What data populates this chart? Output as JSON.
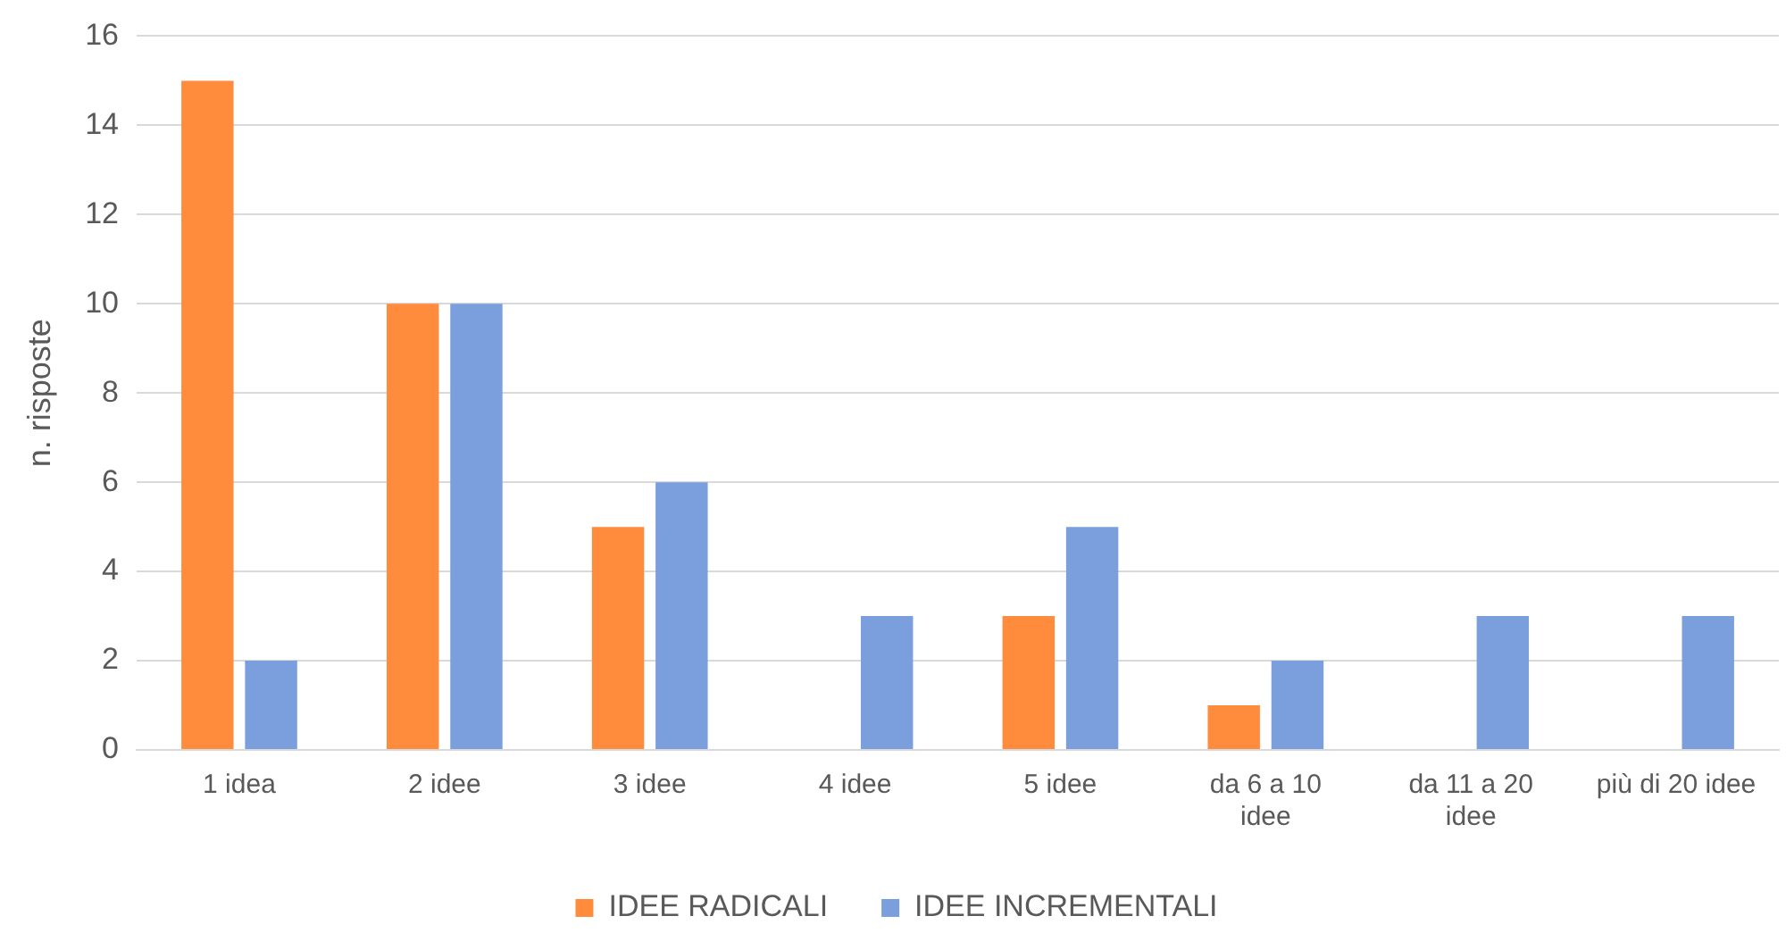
{
  "chart_data": {
    "type": "bar",
    "ylabel": "n. risposte",
    "categories": [
      "1 idea",
      "2 idee",
      "3 idee",
      "4 idee",
      "5 idee",
      "da 6 a 10\nidee",
      "da 11 a 20\nidee",
      "più di 20 idee"
    ],
    "series": [
      {
        "name": "IDEE RADICALI",
        "color": "#ff8b3d",
        "values": [
          15,
          10,
          5,
          0,
          3,
          1,
          0,
          0
        ]
      },
      {
        "name": "IDEE INCREMENTALI",
        "color": "#7a9fdc",
        "values": [
          2,
          10,
          6,
          3,
          5,
          2,
          3,
          3
        ]
      }
    ],
    "ylim": [
      0,
      16
    ],
    "yticks": [
      0,
      2,
      4,
      6,
      8,
      10,
      12,
      14,
      16
    ],
    "grid": "y",
    "legend": "bottom"
  }
}
